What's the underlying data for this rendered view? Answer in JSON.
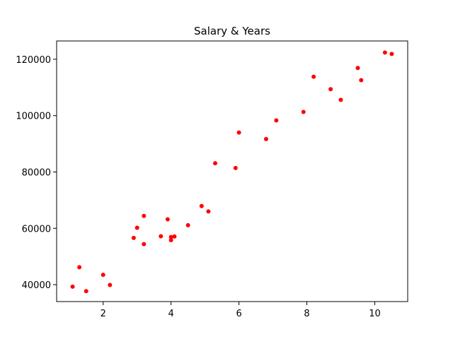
{
  "chart_data": {
    "type": "scatter",
    "title": "Salary & Years",
    "xlabel": "",
    "ylabel": "",
    "xlim": [
      0.63,
      10.97
    ],
    "ylim": [
      34000,
      126500
    ],
    "x_ticks": [
      2,
      4,
      6,
      8,
      10
    ],
    "x_tick_labels": [
      "2",
      "4",
      "6",
      "8",
      "10"
    ],
    "y_ticks": [
      40000,
      60000,
      80000,
      100000,
      120000
    ],
    "y_tick_labels": [
      "40000",
      "60000",
      "80000",
      "100000",
      "120000"
    ],
    "grid": false,
    "legend": "none",
    "marker_color": "#ff0000",
    "series": [
      {
        "points": [
          {
            "x": 1.1,
            "y": 39300
          },
          {
            "x": 1.3,
            "y": 46200
          },
          {
            "x": 1.5,
            "y": 37700
          },
          {
            "x": 2.0,
            "y": 43500
          },
          {
            "x": 2.2,
            "y": 39900
          },
          {
            "x": 2.9,
            "y": 56600
          },
          {
            "x": 3.0,
            "y": 60200
          },
          {
            "x": 3.2,
            "y": 54400
          },
          {
            "x": 3.2,
            "y": 64400
          },
          {
            "x": 3.7,
            "y": 57200
          },
          {
            "x": 3.9,
            "y": 63200
          },
          {
            "x": 4.0,
            "y": 55800
          },
          {
            "x": 4.0,
            "y": 56900
          },
          {
            "x": 4.1,
            "y": 57100
          },
          {
            "x": 4.5,
            "y": 61100
          },
          {
            "x": 4.9,
            "y": 67900
          },
          {
            "x": 5.1,
            "y": 66000
          },
          {
            "x": 5.3,
            "y": 83100
          },
          {
            "x": 5.9,
            "y": 81400
          },
          {
            "x": 6.0,
            "y": 94000
          },
          {
            "x": 6.8,
            "y": 91700
          },
          {
            "x": 7.1,
            "y": 98300
          },
          {
            "x": 7.9,
            "y": 101300
          },
          {
            "x": 8.2,
            "y": 113800
          },
          {
            "x": 8.7,
            "y": 109400
          },
          {
            "x": 9.0,
            "y": 105600
          },
          {
            "x": 9.5,
            "y": 116900
          },
          {
            "x": 9.6,
            "y": 112600
          },
          {
            "x": 10.3,
            "y": 122400
          },
          {
            "x": 10.5,
            "y": 121900
          }
        ]
      }
    ]
  }
}
